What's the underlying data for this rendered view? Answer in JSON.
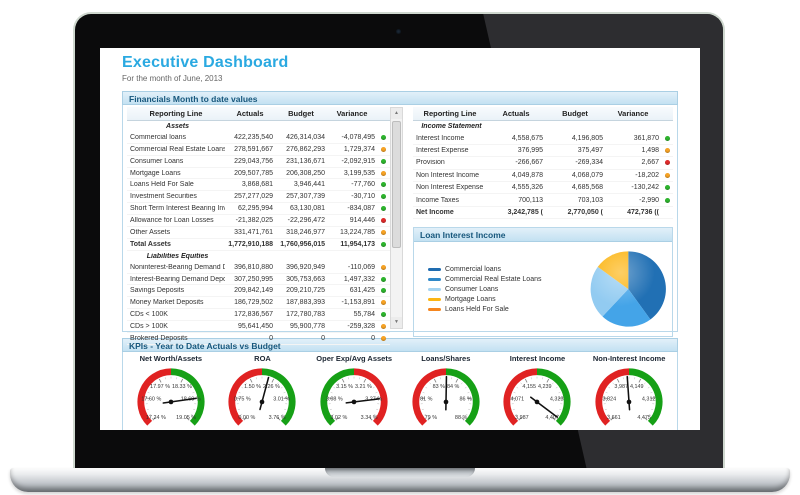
{
  "header": {
    "title": "Executive Dashboard",
    "subtitle": "For the month of June, 2013"
  },
  "financials": {
    "section_title": "Financials Month to date values",
    "columns": [
      "Reporting Line",
      "Actuals",
      "Budget",
      "Variance"
    ],
    "balance_sheet_rows": [
      {
        "type": "group",
        "label": "Assets"
      },
      {
        "type": "row",
        "label": "Commercial loans",
        "actuals": "422,235,540",
        "budget": "426,314,034",
        "variance": "-4,078,495",
        "status": "green"
      },
      {
        "type": "row",
        "label": "Commercial Real Estate Loans",
        "actuals": "278,591,667",
        "budget": "276,862,293",
        "variance": "1,729,374",
        "status": "orange"
      },
      {
        "type": "row",
        "label": "Consumer Loans",
        "actuals": "229,043,756",
        "budget": "231,136,671",
        "variance": "-2,092,915",
        "status": "green"
      },
      {
        "type": "row",
        "label": "Mortgage Loans",
        "actuals": "209,507,785",
        "budget": "206,308,250",
        "variance": "3,199,535",
        "status": "orange"
      },
      {
        "type": "row",
        "label": "Loans Held For Sale",
        "actuals": "3,868,681",
        "budget": "3,946,441",
        "variance": "-77,760",
        "status": "green"
      },
      {
        "type": "row",
        "label": "Investment Securities",
        "actuals": "257,277,029",
        "budget": "257,307,739",
        "variance": "-30,710",
        "status": "green"
      },
      {
        "type": "row",
        "label": "Short Term Interest Bearing Investments",
        "actuals": "62,295,994",
        "budget": "63,130,081",
        "variance": "-834,087",
        "status": "green"
      },
      {
        "type": "row",
        "label": "Allowance for Loan Losses",
        "actuals": "-21,382,025",
        "budget": "-22,296,472",
        "variance": "914,446",
        "status": "red"
      },
      {
        "type": "row",
        "label": "Other Assets",
        "actuals": "331,471,761",
        "budget": "318,246,977",
        "variance": "13,224,785",
        "status": "orange"
      },
      {
        "type": "total",
        "label": "Total Assets",
        "actuals": "1,772,910,188",
        "budget": "1,760,956,015",
        "variance": "11,954,173",
        "status": "green"
      },
      {
        "type": "group",
        "label": "Liabilities Equities"
      },
      {
        "type": "row",
        "label": "Noninterest-Bearing Demand Deposits",
        "actuals": "396,810,880",
        "budget": "396,920,949",
        "variance": "-110,069",
        "status": "orange"
      },
      {
        "type": "row",
        "label": "Interest-Bearing Demand Deposits",
        "actuals": "307,250,995",
        "budget": "305,753,663",
        "variance": "1,497,332",
        "status": "green"
      },
      {
        "type": "row",
        "label": "Savings Deposits",
        "actuals": "209,842,149",
        "budget": "209,210,725",
        "variance": "631,425",
        "status": "green"
      },
      {
        "type": "row",
        "label": "Money Market Deposits",
        "actuals": "186,729,502",
        "budget": "187,883,393",
        "variance": "-1,153,891",
        "status": "orange"
      },
      {
        "type": "row",
        "label": "CDs < 100K",
        "actuals": "172,836,567",
        "budget": "172,780,783",
        "variance": "55,784",
        "status": "green"
      },
      {
        "type": "row",
        "label": "CDs > 100K",
        "actuals": "95,641,450",
        "budget": "95,900,778",
        "variance": "-259,328",
        "status": "orange"
      },
      {
        "type": "row",
        "label": "Brokered Deposits",
        "actuals": "0",
        "budget": "0",
        "variance": "0",
        "status": "orange"
      }
    ],
    "income_statement_rows": [
      {
        "type": "group",
        "label": "Income Statement"
      },
      {
        "type": "row",
        "label": "Interest Income",
        "actuals": "4,558,675",
        "budget": "4,196,805",
        "variance": "361,870",
        "status": "green"
      },
      {
        "type": "row",
        "label": "Interest Expense",
        "actuals": "376,995",
        "budget": "375,497",
        "variance": "1,498",
        "status": "orange"
      },
      {
        "type": "row",
        "label": "Provision",
        "actuals": "-266,667",
        "budget": "-269,334",
        "variance": "2,667",
        "status": "red"
      },
      {
        "type": "row",
        "label": "Non Interest Income",
        "actuals": "4,049,878",
        "budget": "4,068,079",
        "variance": "-18,202",
        "status": "orange"
      },
      {
        "type": "row",
        "label": "Non Interest Expense",
        "actuals": "4,555,326",
        "budget": "4,685,568",
        "variance": "-130,242",
        "status": "green"
      },
      {
        "type": "row",
        "label": "Income Taxes",
        "actuals": "700,113",
        "budget": "703,103",
        "variance": "-2,990",
        "status": "green"
      },
      {
        "type": "total",
        "label": "Net Income",
        "actuals": "3,242,785 (",
        "budget": "2,770,050 (",
        "variance": "472,736 ((",
        "status": "none"
      }
    ]
  },
  "loan_interest_income": {
    "title": "Loan Interest Income",
    "legend": [
      {
        "label": "Commercial loans",
        "color": "#1f6cb0"
      },
      {
        "label": "Commercial Real Estate Loans",
        "color": "#2f88c8"
      },
      {
        "label": "Consumer Loans",
        "color": "#a4d4f2"
      },
      {
        "label": "Mortgage Loans",
        "color": "#fcb514"
      },
      {
        "label": "Loans Held For Sale",
        "color": "#f5861f"
      }
    ]
  },
  "kpis": {
    "section_title": "KPIs - Year to Date Actuals vs Budget",
    "gauges": [
      {
        "title": "Net Worth/Assets",
        "tick_labels": [
          "17.24 %",
          "17.60 %",
          "17.97 %",
          "18.33 %",
          "18.69 %",
          "19.05 %"
        ],
        "needle_deg": 82,
        "reversed": false
      },
      {
        "title": "ROA",
        "tick_labels": [
          "0.00 %",
          "0.75 %",
          "1.50 %",
          "2.26 %",
          "3.01 %",
          "3.76 %"
        ],
        "needle_deg": 15,
        "reversed": false
      },
      {
        "title": "Oper Exp/Avg Assets",
        "tick_labels": [
          "3.02 %",
          "3.08 %",
          "3.15 %",
          "3.21 %",
          "3.27 %",
          "3.34 %"
        ],
        "needle_deg": 83,
        "reversed": true
      },
      {
        "title": "Loans/Shares",
        "tick_labels": [
          "79 %",
          "81 %",
          "83 %",
          "84 %",
          "86 %",
          "88 %"
        ],
        "needle_deg": 1,
        "reversed": false
      },
      {
        "title": "Interest Income",
        "tick_labels": [
          "3,987",
          "4,071",
          "4,155",
          "4,239",
          "4,323",
          "4,407"
        ],
        "needle_deg": 127,
        "reversed": false
      },
      {
        "title": "Non-Interest Income",
        "tick_labels": [
          "3,661",
          "3,824",
          "3,987",
          "4,149",
          "4,312",
          "4,475"
        ],
        "needle_deg": -4,
        "reversed": false
      }
    ]
  },
  "colors": {
    "accent": "#2aa9e1",
    "section_header_text": "#17577c",
    "status_green": "#2db52d",
    "status_orange": "#f7a325",
    "status_red": "#e02b2b",
    "gauge_red": "#e02222",
    "gauge_green": "#16a016",
    "pie_slices": [
      "#2170b4",
      "#44a4e8",
      "#92cbf1",
      "#fcb514",
      "#f5861f"
    ]
  },
  "chart_data": [
    {
      "type": "pie",
      "title": "Loan Interest Income",
      "labels": [
        "Commercial loans",
        "Commercial Real Estate Loans",
        "Consumer Loans",
        "Mortgage Loans",
        "Loans Held For Sale"
      ],
      "values": [
        40,
        22,
        23,
        15,
        0
      ],
      "unit": "percent share (estimated from slice angles)",
      "legend_position": "left"
    },
    {
      "type": "gauge",
      "title": "Net Worth/Assets",
      "tick_values": [
        17.24,
        17.6,
        17.97,
        18.33,
        18.69,
        19.05
      ],
      "needle_value": 18.69,
      "unit": "%"
    },
    {
      "type": "gauge",
      "title": "ROA",
      "tick_values": [
        0.0,
        0.75,
        1.5,
        2.26,
        3.01,
        3.76
      ],
      "needle_value": 2.09,
      "unit": "%"
    },
    {
      "type": "gauge",
      "title": "Oper Exp/Avg Assets",
      "tick_values": [
        3.02,
        3.08,
        3.15,
        3.21,
        3.27,
        3.34
      ],
      "needle_value": 3.28,
      "unit": "%"
    },
    {
      "type": "gauge",
      "title": "Loans/Shares",
      "tick_values": [
        79,
        81,
        83,
        84,
        86,
        88
      ],
      "needle_value": 83.5,
      "unit": "%"
    },
    {
      "type": "gauge",
      "title": "Interest Income",
      "tick_values": [
        3987,
        4071,
        4155,
        4239,
        4323,
        4407
      ],
      "needle_value": 4394,
      "unit": ""
    },
    {
      "type": "gauge",
      "title": "Non-Interest Income",
      "tick_values": [
        3661,
        3824,
        3987,
        4149,
        4312,
        4475
      ],
      "needle_value": 4056,
      "unit": ""
    }
  ]
}
